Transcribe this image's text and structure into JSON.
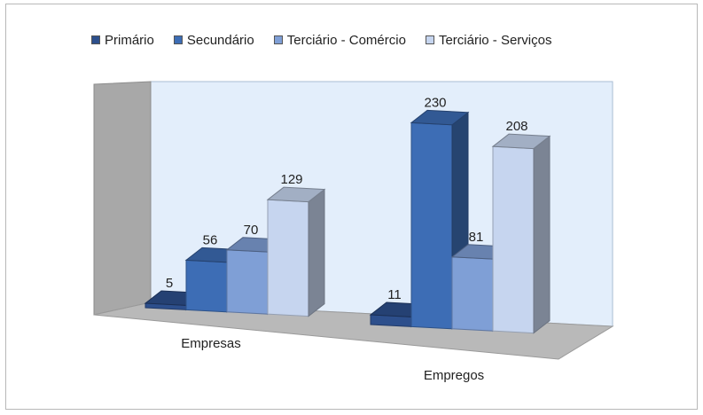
{
  "chart_data": {
    "type": "bar",
    "categories": [
      "Empresas",
      "Empregos"
    ],
    "series": [
      {
        "name": "Primário",
        "values": [
          5,
          11
        ],
        "color": "#2d4f8c"
      },
      {
        "name": "Secundário",
        "values": [
          56,
          230
        ],
        "color": "#3d6db5"
      },
      {
        "name": "Terciário - Comércio",
        "values": [
          70,
          81
        ],
        "color": "#7f9fd6"
      },
      {
        "name": "Terciário - Serviços",
        "values": [
          129,
          208
        ],
        "color": "#c6d5ef"
      }
    ],
    "title": "",
    "xlabel": "",
    "ylabel": "",
    "ylim": [
      0,
      250
    ],
    "legend_position": "top",
    "grid": false,
    "style": "3d-column"
  }
}
